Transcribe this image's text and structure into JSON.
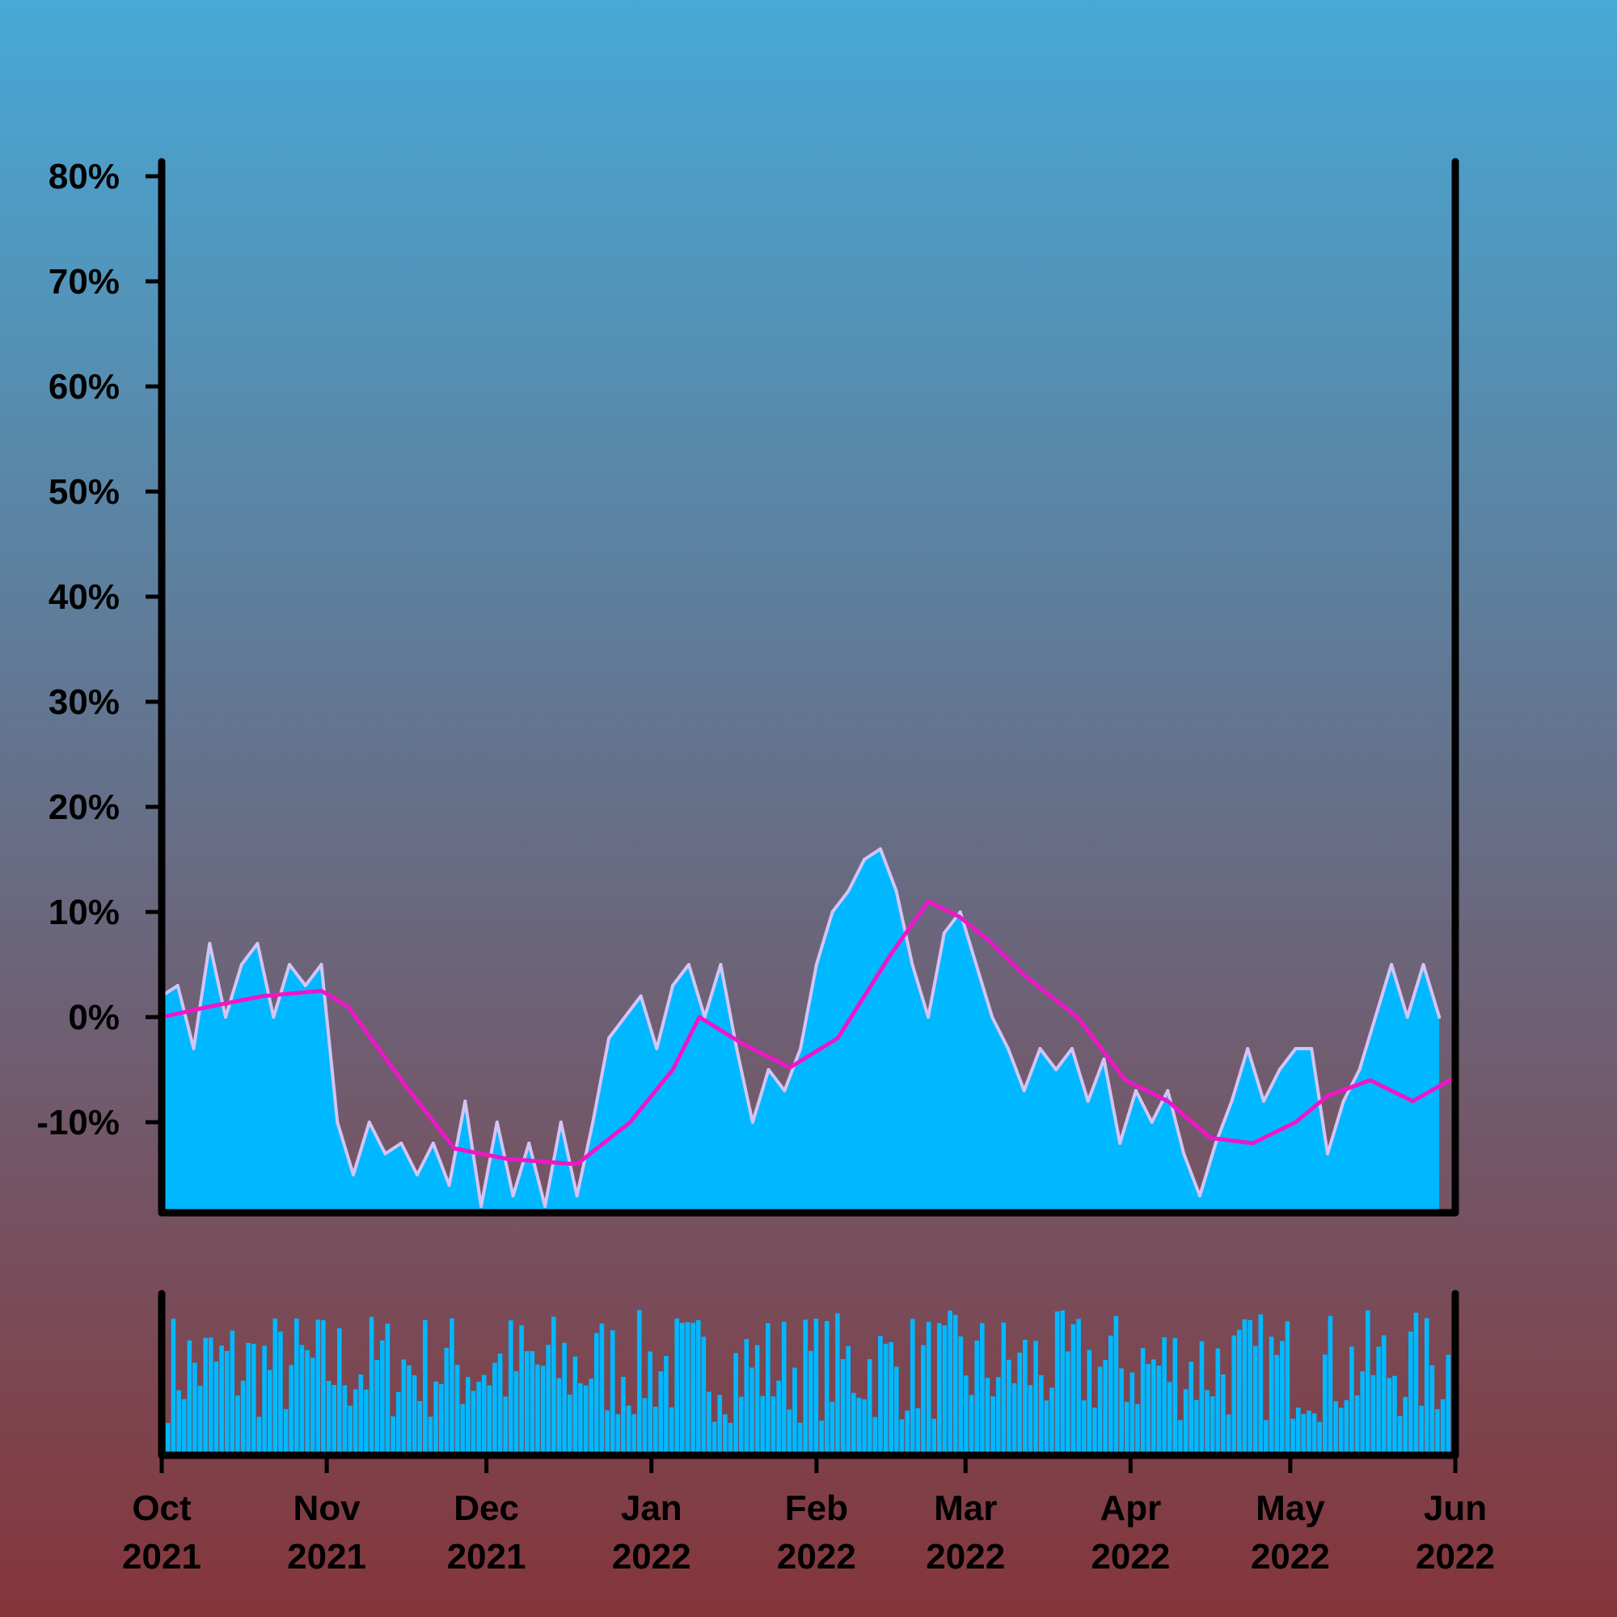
{
  "background": {
    "top_color": "#47a9d6",
    "bottom_color": "#85353a"
  },
  "chart_data": {
    "type": "area",
    "title": "",
    "xlabel": "",
    "ylabel": "",
    "x_range": [
      "2021-10-01",
      "2022-06-01"
    ],
    "ylim": [
      -18,
      80
    ],
    "y_format": "percent",
    "y_ticks": [
      {
        "value": 80,
        "label": "80%"
      },
      {
        "value": 70,
        "label": "70%"
      },
      {
        "value": 60,
        "label": "60%"
      },
      {
        "value": 50,
        "label": "50%"
      },
      {
        "value": 40,
        "label": "40%"
      },
      {
        "value": 30,
        "label": "30%"
      },
      {
        "value": 20,
        "label": "20%"
      },
      {
        "value": 10,
        "label": "10%"
      },
      {
        "value": 0,
        "label": "0%"
      },
      {
        "value": -10,
        "label": "-10%"
      }
    ],
    "x_ticks": [
      {
        "date": "2021-10-01",
        "month": "Oct",
        "year": "2021"
      },
      {
        "date": "2021-11-01",
        "month": "Nov",
        "year": "2021"
      },
      {
        "date": "2021-12-01",
        "month": "Dec",
        "year": "2021"
      },
      {
        "date": "2022-01-01",
        "month": "Jan",
        "year": "2022"
      },
      {
        "date": "2022-02-01",
        "month": "Feb",
        "year": "2022"
      },
      {
        "date": "2022-03-01",
        "month": "Mar",
        "year": "2022"
      },
      {
        "date": "2022-04-01",
        "month": "Apr",
        "year": "2022"
      },
      {
        "date": "2022-05-01",
        "month": "May",
        "year": "2022"
      },
      {
        "date": "2022-06-01",
        "month": "Jun",
        "year": "2022"
      }
    ],
    "colors": {
      "area_fill": "#00b8ff",
      "series_line": "#d4c4f5",
      "moving_average": "#ee16c8",
      "volume_bars": "#00b8ff",
      "axis": "#000000"
    },
    "series": [
      {
        "role": "daily",
        "points": [
          [
            "2021-10-01",
            2
          ],
          [
            "2021-10-04",
            3
          ],
          [
            "2021-10-07",
            -3
          ],
          [
            "2021-10-10",
            7
          ],
          [
            "2021-10-13",
            0
          ],
          [
            "2021-10-16",
            5
          ],
          [
            "2021-10-19",
            7
          ],
          [
            "2021-10-22",
            0
          ],
          [
            "2021-10-25",
            5
          ],
          [
            "2021-10-28",
            3
          ],
          [
            "2021-10-31",
            5
          ],
          [
            "2021-11-03",
            -10
          ],
          [
            "2021-11-06",
            -15
          ],
          [
            "2021-11-09",
            -10
          ],
          [
            "2021-11-12",
            -13
          ],
          [
            "2021-11-15",
            -12
          ],
          [
            "2021-11-18",
            -15
          ],
          [
            "2021-11-21",
            -12
          ],
          [
            "2021-11-24",
            -16
          ],
          [
            "2021-11-27",
            -8
          ],
          [
            "2021-11-30",
            -18
          ],
          [
            "2021-12-03",
            -10
          ],
          [
            "2021-12-06",
            -17
          ],
          [
            "2021-12-09",
            -12
          ],
          [
            "2021-12-12",
            -18
          ],
          [
            "2021-12-15",
            -10
          ],
          [
            "2021-12-18",
            -17
          ],
          [
            "2021-12-21",
            -10
          ],
          [
            "2021-12-24",
            -2
          ],
          [
            "2021-12-27",
            0
          ],
          [
            "2021-12-30",
            2
          ],
          [
            "2022-01-02",
            -3
          ],
          [
            "2022-01-05",
            3
          ],
          [
            "2022-01-08",
            5
          ],
          [
            "2022-01-11",
            0
          ],
          [
            "2022-01-14",
            5
          ],
          [
            "2022-01-17",
            -3
          ],
          [
            "2022-01-20",
            -10
          ],
          [
            "2022-01-23",
            -5
          ],
          [
            "2022-01-26",
            -7
          ],
          [
            "2022-01-29",
            -3
          ],
          [
            "2022-02-01",
            5
          ],
          [
            "2022-02-04",
            10
          ],
          [
            "2022-02-07",
            12
          ],
          [
            "2022-02-10",
            15
          ],
          [
            "2022-02-13",
            16
          ],
          [
            "2022-02-16",
            12
          ],
          [
            "2022-02-19",
            5
          ],
          [
            "2022-02-22",
            0
          ],
          [
            "2022-02-25",
            8
          ],
          [
            "2022-02-28",
            10
          ],
          [
            "2022-03-03",
            5
          ],
          [
            "2022-03-06",
            0
          ],
          [
            "2022-03-09",
            -3
          ],
          [
            "2022-03-12",
            -7
          ],
          [
            "2022-03-15",
            -3
          ],
          [
            "2022-03-18",
            -5
          ],
          [
            "2022-03-21",
            -3
          ],
          [
            "2022-03-24",
            -8
          ],
          [
            "2022-03-27",
            -4
          ],
          [
            "2022-03-30",
            -12
          ],
          [
            "2022-04-02",
            -7
          ],
          [
            "2022-04-05",
            -10
          ],
          [
            "2022-04-08",
            -7
          ],
          [
            "2022-04-11",
            -13
          ],
          [
            "2022-04-14",
            -17
          ],
          [
            "2022-04-17",
            -12
          ],
          [
            "2022-04-20",
            -8
          ],
          [
            "2022-04-23",
            -3
          ],
          [
            "2022-04-26",
            -8
          ],
          [
            "2022-04-29",
            -5
          ],
          [
            "2022-05-02",
            -3
          ],
          [
            "2022-05-05",
            -3
          ],
          [
            "2022-05-08",
            -13
          ],
          [
            "2022-05-11",
            -8
          ],
          [
            "2022-05-14",
            -5
          ],
          [
            "2022-05-17",
            0
          ],
          [
            "2022-05-20",
            5
          ],
          [
            "2022-05-23",
            0
          ],
          [
            "2022-05-26",
            5
          ],
          [
            "2022-05-29",
            0
          ]
        ]
      },
      {
        "role": "moving-average",
        "points": [
          [
            "2021-10-01",
            0
          ],
          [
            "2021-10-10",
            1
          ],
          [
            "2021-10-20",
            2
          ],
          [
            "2021-10-31",
            2.5
          ],
          [
            "2021-11-05",
            1
          ],
          [
            "2021-11-15",
            -6
          ],
          [
            "2021-11-25",
            -12.5
          ],
          [
            "2021-12-05",
            -13.5
          ],
          [
            "2021-12-18",
            -14
          ],
          [
            "2021-12-28",
            -10
          ],
          [
            "2022-01-05",
            -5
          ],
          [
            "2022-01-10",
            0
          ],
          [
            "2022-01-18",
            -2.5
          ],
          [
            "2022-01-27",
            -4.8
          ],
          [
            "2022-02-05",
            -2
          ],
          [
            "2022-02-15",
            6
          ],
          [
            "2022-02-22",
            11
          ],
          [
            "2022-02-28",
            9.5
          ],
          [
            "2022-03-06",
            7
          ],
          [
            "2022-03-12",
            4
          ],
          [
            "2022-03-22",
            0
          ],
          [
            "2022-03-31",
            -6
          ],
          [
            "2022-04-08",
            -8
          ],
          [
            "2022-04-16",
            -11.5
          ],
          [
            "2022-04-24",
            -12
          ],
          [
            "2022-05-02",
            -10
          ],
          [
            "2022-05-08",
            -7.5
          ],
          [
            "2022-05-16",
            -6
          ],
          [
            "2022-05-24",
            -8
          ],
          [
            "2022-05-31",
            -6
          ]
        ]
      }
    ]
  }
}
